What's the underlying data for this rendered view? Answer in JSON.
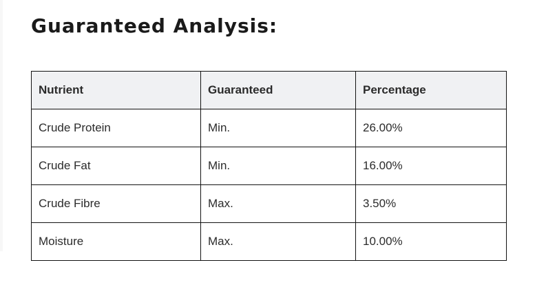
{
  "title": "Guaranteed Analysis:",
  "table": {
    "headers": [
      "Nutrient",
      "Guaranteed",
      "Percentage"
    ],
    "rows": [
      [
        "Crude Protein",
        "Min.",
        "26.00%"
      ],
      [
        "Crude Fat",
        "Min.",
        "16.00%"
      ],
      [
        "Crude Fibre",
        "Max.",
        "3.50%"
      ],
      [
        "Moisture",
        "Max.",
        "10.00%"
      ]
    ]
  }
}
